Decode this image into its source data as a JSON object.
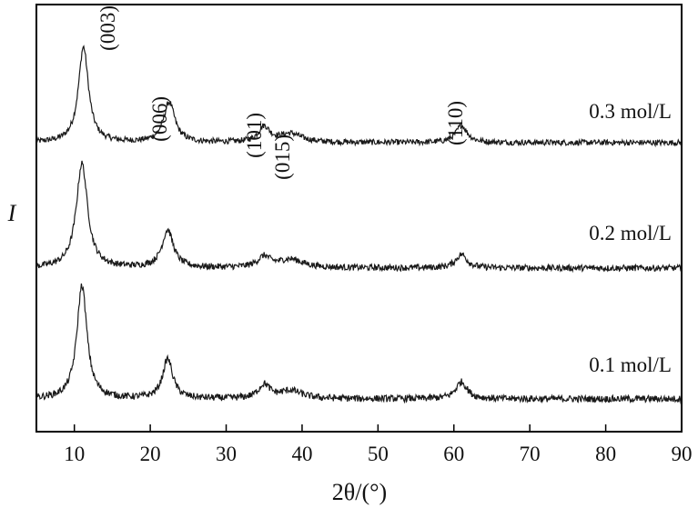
{
  "chart_data": {
    "type": "line",
    "title": "",
    "xlabel": "2θ/(°)",
    "ylabel": "I",
    "xlim": [
      5,
      90
    ],
    "xticks": [
      10,
      20,
      30,
      40,
      50,
      60,
      70,
      80,
      90
    ],
    "grid": false,
    "legend": "none",
    "line_color": "#1a1a1a",
    "series": [
      {
        "name": "0.3 mol/L",
        "baseline": 0.0,
        "peaks": [
          [
            11.2,
            1.0,
            0.8
          ],
          [
            22.5,
            0.42,
            0.9
          ],
          [
            35.0,
            0.16,
            0.9
          ],
          [
            38.5,
            0.09,
            1.8
          ],
          [
            61.0,
            0.18,
            0.9
          ]
        ]
      },
      {
        "name": "0.2 mol/L",
        "baseline": 0.0,
        "peaks": [
          [
            11.0,
            1.0,
            0.9
          ],
          [
            22.3,
            0.36,
            0.9
          ],
          [
            35.0,
            0.1,
            1.0
          ],
          [
            38.5,
            0.08,
            2.0
          ],
          [
            61.0,
            0.13,
            0.9
          ]
        ]
      },
      {
        "name": "0.1 mol/L",
        "baseline": 0.0,
        "peaks": [
          [
            11.0,
            1.0,
            0.8
          ],
          [
            22.3,
            0.35,
            0.8
          ],
          [
            35.0,
            0.12,
            0.9
          ],
          [
            38.5,
            0.07,
            1.8
          ],
          [
            61.0,
            0.15,
            0.9
          ]
        ]
      }
    ],
    "annotations": [
      {
        "label": "(003)",
        "x": 11.0
      },
      {
        "label": "(006)",
        "x": 22.4
      },
      {
        "label": "(101)",
        "x": 35.0
      },
      {
        "label": "(015)",
        "x": 38.4
      },
      {
        "label": "(110)",
        "x": 61.0
      }
    ]
  }
}
